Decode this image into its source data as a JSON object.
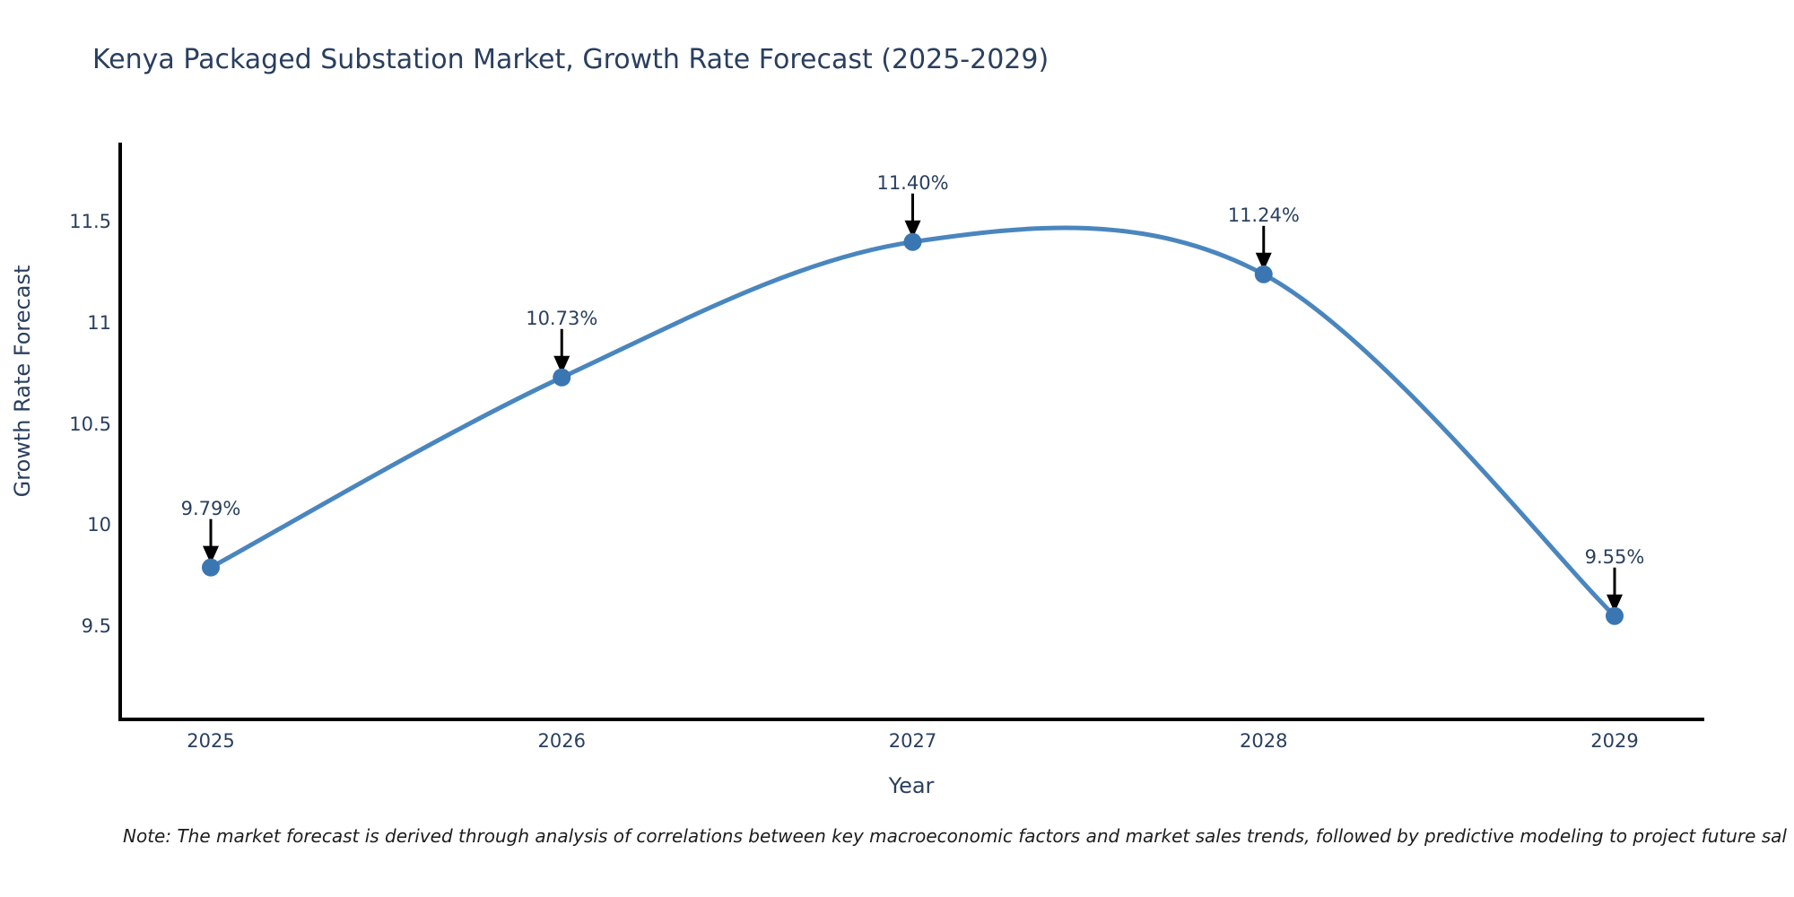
{
  "title": "Kenya Packaged Substation Market, Growth Rate Forecast (2025-2029)",
  "note": "Note: The market forecast is derived through analysis of correlations between key macroeconomic factors and market sales trends, followed by predictive modeling to project future sal",
  "chart_data": {
    "type": "line",
    "line_shape": "spline",
    "title": "Kenya Packaged Substation Market, Growth Rate Forecast (2025-2029)",
    "xlabel": "Year",
    "ylabel": "Growth Rate Forecast",
    "x": [
      2025,
      2026,
      2027,
      2028,
      2029
    ],
    "y": [
      9.79,
      10.73,
      11.4,
      11.24,
      9.55
    ],
    "point_labels": [
      "9.79%",
      "10.73%",
      "11.40%",
      "11.24%",
      "9.55%"
    ],
    "x_ticks": [
      "2025",
      "2026",
      "2027",
      "2028",
      "2029"
    ],
    "y_ticks": [
      "9.5",
      "10",
      "10.5",
      "11",
      "11.5"
    ],
    "ylim": [
      9.04,
      11.89
    ],
    "grid": false,
    "legend": "none",
    "annotations_have_arrows": true,
    "colors": {
      "line": "#4a86be",
      "marker": "#3a76b2",
      "axis": "#000000",
      "text": "#2a3f5f",
      "arrow": "#000000",
      "background": "#ffffff"
    }
  }
}
